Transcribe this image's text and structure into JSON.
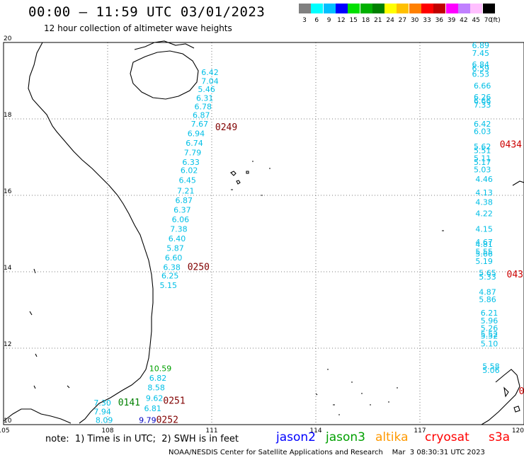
{
  "header": {
    "title": "00:00 — 11:59 UTC 03/01/2023",
    "subtitle": "12 hour collection of altimeter wave heights"
  },
  "colorbar": {
    "unit_label": "(ft)",
    "colors": [
      "#808080",
      "#00ffff",
      "#00c0ff",
      "#0000ff",
      "#00e000",
      "#00b000",
      "#008000",
      "#ffff00",
      "#ffc000",
      "#ff8000",
      "#ff0000",
      "#c00000",
      "#ff00ff",
      "#c080ff",
      "#ffc0ff",
      "#000000"
    ],
    "labels": [
      "3",
      "6",
      "9",
      "12",
      "15",
      "18",
      "21",
      "24",
      "27",
      "30",
      "33",
      "36",
      "39",
      "42",
      "45",
      "70"
    ]
  },
  "footer": {
    "note": "note:  1) Time is in UTC;  2) SWH is in feet",
    "satellites": [
      {
        "name": "jason2",
        "color": "#0000ff"
      },
      {
        "name": "jason3",
        "color": "#00a000"
      },
      {
        "name": "altika",
        "color": "#ff9900"
      },
      {
        "name": "cryosat",
        "color": "#ff0000"
      },
      {
        "name": "s3a",
        "color": "#ff0000"
      }
    ],
    "credit": "NOAA/NESDIS Center for Satellite Applications and Research    Mar  3 08:30:31 UTC 2023"
  },
  "chart_data": {
    "type": "scatter",
    "title": "00:00 — 11:59 UTC 03/01/2023",
    "subtitle": "12 hour collection of altimeter wave heights",
    "xlabel": "",
    "ylabel": "",
    "xlim": [
      105,
      120
    ],
    "ylim": [
      10,
      20
    ],
    "x_ticks": [
      105,
      108,
      111,
      114,
      117,
      120
    ],
    "y_ticks": [
      10,
      12,
      14,
      16,
      18,
      20
    ],
    "grid": true,
    "units": "ft",
    "tracks": [
      {
        "pass_label": "0249",
        "label_color": "#800000",
        "label_pos": [
          111.1,
          17.7
        ],
        "color": "#00bfe6",
        "points": [
          [
            110.7,
            19.15,
            "6.42"
          ],
          [
            110.7,
            18.92,
            "7.04"
          ],
          [
            110.6,
            18.7,
            "5.46"
          ],
          [
            110.55,
            18.47,
            "6.31"
          ],
          [
            110.5,
            18.25,
            "6.78"
          ],
          [
            110.45,
            18.03,
            "6.87"
          ],
          [
            110.4,
            17.8,
            "7.67"
          ],
          [
            110.3,
            17.55,
            "6.94"
          ],
          [
            110.25,
            17.3,
            "6.74"
          ],
          [
            110.2,
            17.05,
            "7.79"
          ],
          [
            110.15,
            16.8,
            "6.33"
          ],
          [
            110.1,
            16.58,
            "6.02"
          ],
          [
            110.05,
            16.32,
            "6.45"
          ],
          [
            110.0,
            16.05,
            "7.21"
          ],
          [
            109.95,
            15.8,
            "6.87"
          ],
          [
            109.9,
            15.55,
            "6.37"
          ],
          [
            109.85,
            15.3,
            "6.06"
          ],
          [
            109.8,
            15.05,
            "7.38"
          ],
          [
            109.75,
            14.8,
            "6.40"
          ],
          [
            109.7,
            14.55,
            "5.87"
          ],
          [
            109.65,
            14.3,
            "6.60"
          ],
          [
            109.6,
            14.05,
            "6.38"
          ],
          [
            109.55,
            13.82,
            "6.25"
          ],
          [
            109.5,
            13.57,
            "5.15"
          ]
        ]
      },
      {
        "pass_label": "0250",
        "label_color": "#800000",
        "label_pos": [
          110.3,
          14.05
        ],
        "color": "#00bfe6",
        "points": []
      },
      {
        "pass_label": "0251",
        "label_color": "#800000",
        "label_pos": [
          109.6,
          10.55
        ],
        "color": "#00bfe6",
        "points": [
          [
            109.2,
            11.15,
            "6.82"
          ],
          [
            109.15,
            10.9,
            "8.58"
          ],
          [
            109.1,
            10.62,
            "9.62"
          ],
          [
            109.05,
            10.35,
            "6.81"
          ]
        ]
      },
      {
        "pass_label": "0252",
        "label_color": "#800000",
        "label_pos": [
          109.4,
          10.05
        ],
        "color": "#0000c0",
        "points": [
          [
            108.9,
            10.05,
            "9.79"
          ]
        ]
      },
      {
        "pass_label": "0141",
        "label_color": "#008000",
        "label_pos": [
          108.3,
          10.5
        ],
        "color": "#00a000",
        "points": [
          [
            109.2,
            11.4,
            "10.59"
          ]
        ]
      },
      {
        "pass_label": "",
        "label_color": "#00bfe6",
        "label_pos": [
          0,
          0
        ],
        "color": "#00bfe6",
        "points": [
          [
            107.6,
            10.5,
            "7.30"
          ],
          [
            107.6,
            10.27,
            "7.94"
          ],
          [
            107.65,
            10.05,
            "8.09"
          ]
        ]
      },
      {
        "pass_label": "0434",
        "label_color": "#cc0000",
        "label_pos": [
          119.3,
          17.25
        ],
        "color": "#00bfe6",
        "points": [
          [
            118.5,
            19.85,
            "6.89"
          ],
          [
            118.5,
            19.65,
            "7.45"
          ],
          [
            118.5,
            19.35,
            "6.84"
          ],
          [
            118.5,
            19.25,
            "6.59"
          ],
          [
            118.5,
            19.1,
            "6.53"
          ],
          [
            118.55,
            18.8,
            "6.66"
          ],
          [
            118.55,
            18.5,
            "6.26"
          ],
          [
            118.55,
            18.4,
            "6.66"
          ],
          [
            118.55,
            18.3,
            "7.33"
          ],
          [
            118.55,
            17.8,
            "6.42"
          ],
          [
            118.55,
            17.6,
            "6.03"
          ],
          [
            118.55,
            17.2,
            "5.62"
          ],
          [
            118.55,
            17.1,
            "5.51"
          ],
          [
            118.55,
            16.9,
            "5.11"
          ],
          [
            118.55,
            16.8,
            "5.17"
          ],
          [
            118.55,
            16.6,
            "5.03"
          ],
          [
            118.6,
            16.35,
            "4.46"
          ],
          [
            118.6,
            16.0,
            "4.13"
          ],
          [
            118.6,
            15.75,
            "4.38"
          ],
          [
            118.6,
            15.45,
            "4.22"
          ],
          [
            118.6,
            15.05,
            "4.15"
          ],
          [
            118.6,
            14.7,
            "4.67"
          ],
          [
            118.6,
            14.65,
            "4.81"
          ],
          [
            118.6,
            14.45,
            "5.55"
          ],
          [
            118.6,
            14.4,
            "5.66"
          ],
          [
            118.6,
            14.2,
            "5.19"
          ]
        ]
      },
      {
        "pass_label": "043",
        "label_color": "#cc0000",
        "label_pos": [
          119.5,
          13.85
        ],
        "color": "#00bfe6",
        "points": [
          [
            118.7,
            13.9,
            "5.65"
          ],
          [
            118.7,
            13.8,
            "5.33"
          ],
          [
            118.7,
            13.4,
            "4.87"
          ],
          [
            118.7,
            13.2,
            "5.86"
          ],
          [
            118.75,
            12.85,
            "6.21"
          ],
          [
            118.75,
            12.65,
            "5.96"
          ],
          [
            118.75,
            12.45,
            "5.26"
          ],
          [
            118.75,
            12.3,
            "5.52"
          ],
          [
            118.75,
            12.25,
            "5.52"
          ],
          [
            118.75,
            12.05,
            "5.10"
          ],
          [
            118.8,
            11.45,
            "5.58"
          ],
          [
            118.8,
            11.35,
            "5.06"
          ]
        ]
      },
      {
        "pass_label": "0",
        "label_color": "#cc0000",
        "label_pos": [
          119.85,
          10.8
        ],
        "color": "#00bfe6",
        "points": []
      }
    ]
  }
}
